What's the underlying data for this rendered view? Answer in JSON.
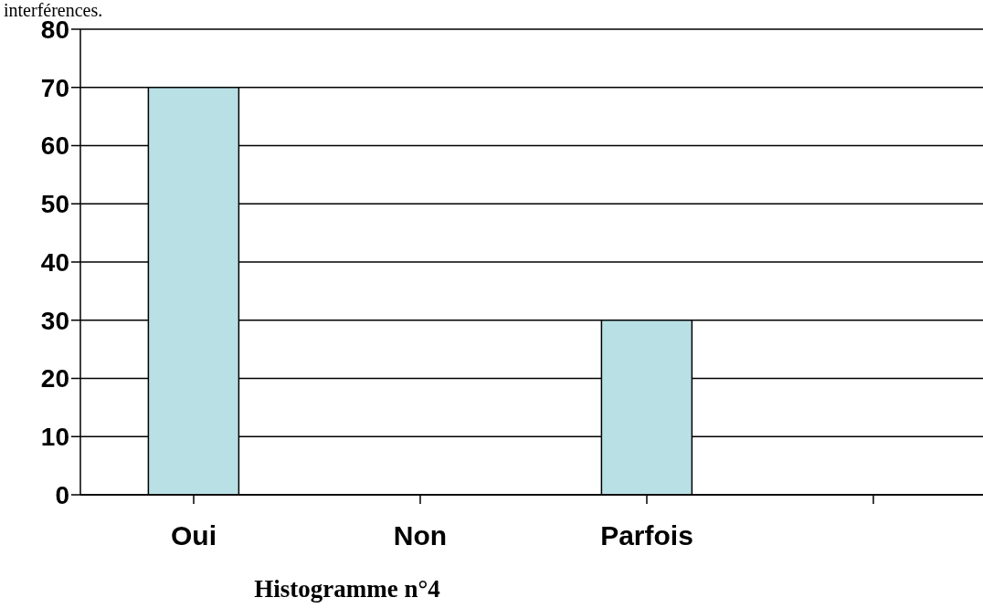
{
  "chart_data": {
    "type": "bar",
    "categories": [
      "Oui",
      "Non",
      "Parfois",
      null
    ],
    "values": [
      70,
      0,
      30,
      null
    ],
    "color": "#b9e0e4",
    "ylim": [
      0,
      80
    ],
    "yticks": [
      0,
      10,
      20,
      30,
      40,
      50,
      60,
      70,
      80
    ],
    "grid": "y",
    "legend": false,
    "annotations": [
      "interférences.",
      "Histogramme n°4"
    ]
  }
}
